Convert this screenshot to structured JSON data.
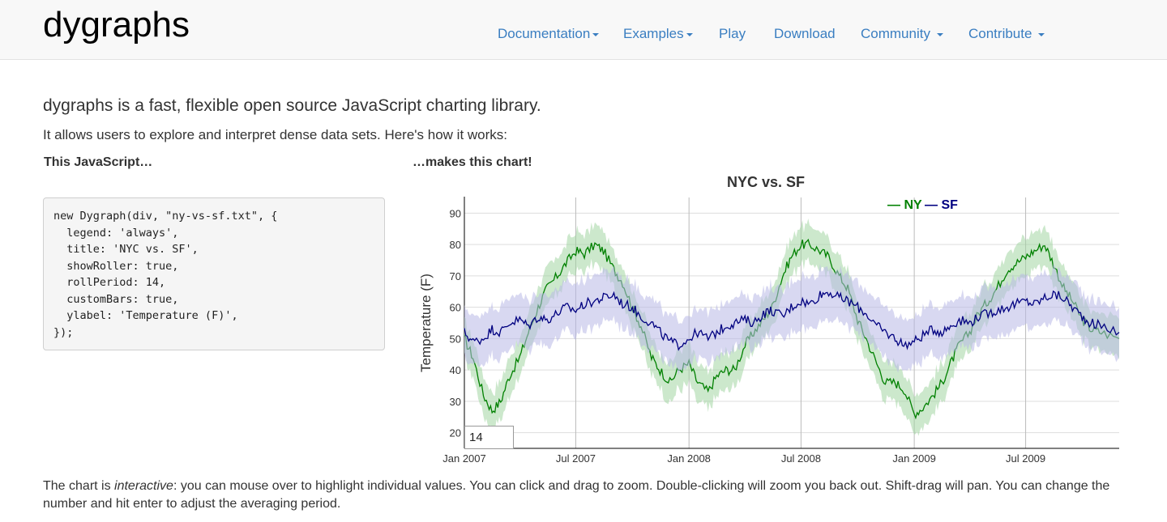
{
  "brand": "dygraphs",
  "nav": [
    {
      "label": "Documentation",
      "dropdown": true
    },
    {
      "label": "Examples",
      "dropdown": true
    },
    {
      "label": "Play",
      "dropdown": false
    },
    {
      "label": "Download",
      "dropdown": false
    },
    {
      "label": "Community",
      "dropdown": true
    },
    {
      "label": "Contribute",
      "dropdown": true
    }
  ],
  "intro": {
    "lead": "dygraphs is a fast, flexible open source JavaScript charting library.",
    "sub": "It allows users to explore and interpret dense data sets. Here's how it works:"
  },
  "headings": {
    "js": "This JavaScript…",
    "chart": "…makes this chart!"
  },
  "code": "new Dygraph(div, \"ny-vs-sf.txt\", {\n  legend: 'always',\n  title: 'NYC vs. SF',\n  showRoller: true,\n  rollPeriod: 14,\n  customBars: true,\n  ylabel: 'Temperature (F)',\n});",
  "roller_value": "14",
  "footer": {
    "pre": "The chart is ",
    "em": "interactive",
    "post": ": you can mouse over to highlight individual values. You can click and drag to zoom. Double-clicking will zoom you back out. Shift-drag will pan. You can change the number and hit enter to adjust the averaging period."
  },
  "chart_data": {
    "type": "line",
    "title": "NYC vs. SF",
    "ylabel": "Temperature (F)",
    "xlabel": "",
    "ylim": [
      15,
      95
    ],
    "yticks": [
      20,
      30,
      40,
      50,
      60,
      70,
      80,
      90
    ],
    "xlim": [
      "2007-01-01",
      "2009-11-30"
    ],
    "xticks": [
      "Jan 2007",
      "Jul 2007",
      "Jan 2008",
      "Jul 2008",
      "Jan 2009",
      "Jul 2009"
    ],
    "xtick_dates": [
      "2007-01-01",
      "2007-07-01",
      "2008-01-01",
      "2008-07-01",
      "2009-01-01",
      "2009-07-01"
    ],
    "grid": true,
    "legend_position": "top-right",
    "series": [
      {
        "name": "NY",
        "color": "#008000",
        "band_color": "#a3d6a3",
        "points": [
          [
            "2007-01-01",
            50
          ],
          [
            "2007-01-15",
            44
          ],
          [
            "2007-02-01",
            32
          ],
          [
            "2007-02-15",
            27
          ],
          [
            "2007-03-01",
            30
          ],
          [
            "2007-03-15",
            38
          ],
          [
            "2007-04-01",
            44
          ],
          [
            "2007-04-15",
            52
          ],
          [
            "2007-05-01",
            60
          ],
          [
            "2007-05-15",
            66
          ],
          [
            "2007-06-01",
            70
          ],
          [
            "2007-06-15",
            74
          ],
          [
            "2007-07-01",
            78
          ],
          [
            "2007-07-15",
            77
          ],
          [
            "2007-08-01",
            80
          ],
          [
            "2007-08-15",
            78
          ],
          [
            "2007-09-01",
            72
          ],
          [
            "2007-09-15",
            68
          ],
          [
            "2007-10-01",
            60
          ],
          [
            "2007-10-15",
            54
          ],
          [
            "2007-11-01",
            44
          ],
          [
            "2007-11-15",
            40
          ],
          [
            "2007-12-01",
            36
          ],
          [
            "2007-12-15",
            40
          ],
          [
            "2008-01-01",
            42
          ],
          [
            "2008-01-15",
            36
          ],
          [
            "2008-02-01",
            33
          ],
          [
            "2008-02-15",
            38
          ],
          [
            "2008-03-01",
            40
          ],
          [
            "2008-03-15",
            40
          ],
          [
            "2008-04-01",
            48
          ],
          [
            "2008-04-15",
            52
          ],
          [
            "2008-05-01",
            56
          ],
          [
            "2008-05-15",
            60
          ],
          [
            "2008-06-01",
            70
          ],
          [
            "2008-06-15",
            76
          ],
          [
            "2008-07-01",
            80
          ],
          [
            "2008-07-15",
            80
          ],
          [
            "2008-08-01",
            78
          ],
          [
            "2008-08-15",
            76
          ],
          [
            "2008-09-01",
            70
          ],
          [
            "2008-09-15",
            66
          ],
          [
            "2008-10-01",
            56
          ],
          [
            "2008-10-15",
            50
          ],
          [
            "2008-11-01",
            42
          ],
          [
            "2008-11-15",
            36
          ],
          [
            "2008-12-01",
            36
          ],
          [
            "2008-12-15",
            34
          ],
          [
            "2009-01-01",
            26
          ],
          [
            "2009-01-15",
            28
          ],
          [
            "2009-02-01",
            32
          ],
          [
            "2009-02-15",
            36
          ],
          [
            "2009-03-01",
            42
          ],
          [
            "2009-03-15",
            48
          ],
          [
            "2009-04-01",
            52
          ],
          [
            "2009-04-15",
            58
          ],
          [
            "2009-05-01",
            62
          ],
          [
            "2009-05-15",
            66
          ],
          [
            "2009-06-01",
            72
          ],
          [
            "2009-06-15",
            74
          ],
          [
            "2009-07-01",
            76
          ],
          [
            "2009-07-15",
            78
          ],
          [
            "2009-08-01",
            80
          ],
          [
            "2009-08-15",
            74
          ],
          [
            "2009-09-01",
            66
          ],
          [
            "2009-09-15",
            62
          ],
          [
            "2009-10-01",
            56
          ],
          [
            "2009-10-15",
            53
          ],
          [
            "2009-11-01",
            52
          ],
          [
            "2009-11-30",
            50
          ]
        ],
        "band": 6
      },
      {
        "name": "SF",
        "color": "#000080",
        "band_color": "#b8b8e6",
        "points": [
          [
            "2007-01-01",
            52
          ],
          [
            "2007-01-15",
            49
          ],
          [
            "2007-02-01",
            50
          ],
          [
            "2007-02-15",
            53
          ],
          [
            "2007-03-01",
            52
          ],
          [
            "2007-03-15",
            55
          ],
          [
            "2007-04-01",
            56
          ],
          [
            "2007-04-15",
            54
          ],
          [
            "2007-05-01",
            57
          ],
          [
            "2007-05-15",
            56
          ],
          [
            "2007-06-01",
            58
          ],
          [
            "2007-06-15",
            60
          ],
          [
            "2007-07-01",
            59
          ],
          [
            "2007-07-15",
            61
          ],
          [
            "2007-08-01",
            62
          ],
          [
            "2007-08-15",
            63
          ],
          [
            "2007-09-01",
            64
          ],
          [
            "2007-09-15",
            61
          ],
          [
            "2007-10-01",
            60
          ],
          [
            "2007-10-15",
            57
          ],
          [
            "2007-11-01",
            55
          ],
          [
            "2007-11-15",
            52
          ],
          [
            "2007-12-01",
            49
          ],
          [
            "2007-12-15",
            48
          ],
          [
            "2008-01-01",
            50
          ],
          [
            "2008-01-15",
            52
          ],
          [
            "2008-02-01",
            50
          ],
          [
            "2008-02-15",
            52
          ],
          [
            "2008-03-01",
            54
          ],
          [
            "2008-03-15",
            55
          ],
          [
            "2008-04-01",
            56
          ],
          [
            "2008-04-15",
            55
          ],
          [
            "2008-05-01",
            58
          ],
          [
            "2008-05-15",
            59
          ],
          [
            "2008-06-01",
            57
          ],
          [
            "2008-06-15",
            60
          ],
          [
            "2008-07-01",
            62
          ],
          [
            "2008-07-15",
            61
          ],
          [
            "2008-08-01",
            64
          ],
          [
            "2008-08-15",
            65
          ],
          [
            "2008-09-01",
            63
          ],
          [
            "2008-09-15",
            62
          ],
          [
            "2008-10-01",
            60
          ],
          [
            "2008-10-15",
            58
          ],
          [
            "2008-11-01",
            54
          ],
          [
            "2008-11-15",
            52
          ],
          [
            "2008-12-01",
            50
          ],
          [
            "2008-12-15",
            48
          ],
          [
            "2009-01-01",
            49
          ],
          [
            "2009-01-15",
            51
          ],
          [
            "2009-02-01",
            53
          ],
          [
            "2009-02-15",
            52
          ],
          [
            "2009-03-01",
            54
          ],
          [
            "2009-03-15",
            56
          ],
          [
            "2009-04-01",
            55
          ],
          [
            "2009-04-15",
            57
          ],
          [
            "2009-05-01",
            58
          ],
          [
            "2009-05-15",
            59
          ],
          [
            "2009-06-01",
            60
          ],
          [
            "2009-06-15",
            61
          ],
          [
            "2009-07-01",
            62
          ],
          [
            "2009-07-15",
            61
          ],
          [
            "2009-08-01",
            63
          ],
          [
            "2009-08-15",
            64
          ],
          [
            "2009-09-01",
            63
          ],
          [
            "2009-09-15",
            60
          ],
          [
            "2009-10-01",
            57
          ],
          [
            "2009-10-15",
            55
          ],
          [
            "2009-11-01",
            54
          ],
          [
            "2009-11-30",
            52
          ]
        ],
        "band": 8
      }
    ]
  }
}
